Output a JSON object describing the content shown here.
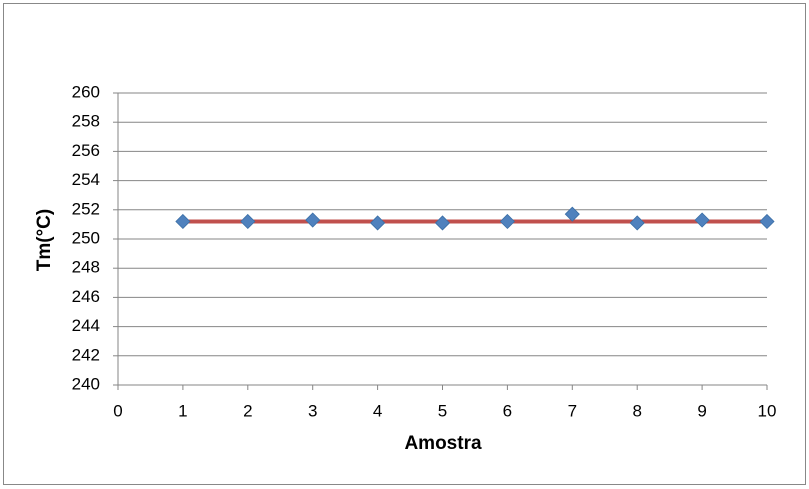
{
  "chart_data": {
    "type": "scatter",
    "x_label": "Amostra",
    "y_label": "Tm(°C)",
    "x": [
      1,
      2,
      3,
      4,
      5,
      6,
      7,
      8,
      9,
      10
    ],
    "series": [
      {
        "color": "#4f81bd",
        "marker": "diamond",
        "values": [
          251.2,
          251.2,
          251.3,
          251.1,
          251.1,
          251.2,
          251.7,
          251.1,
          251.3,
          251.2
        ]
      },
      {
        "color": "#c0504d",
        "marker": "line",
        "values": [
          251.2,
          251.2,
          251.2,
          251.2,
          251.2,
          251.2,
          251.2,
          251.2,
          251.2,
          251.2
        ]
      }
    ],
    "xlim": [
      0,
      10
    ],
    "xticks": [
      0,
      1,
      2,
      3,
      4,
      5,
      6,
      7,
      8,
      9,
      10
    ],
    "ylim": [
      240,
      260
    ],
    "yticks": [
      240,
      242,
      244,
      246,
      248,
      250,
      252,
      254,
      256,
      258,
      260
    ],
    "grid": true
  }
}
